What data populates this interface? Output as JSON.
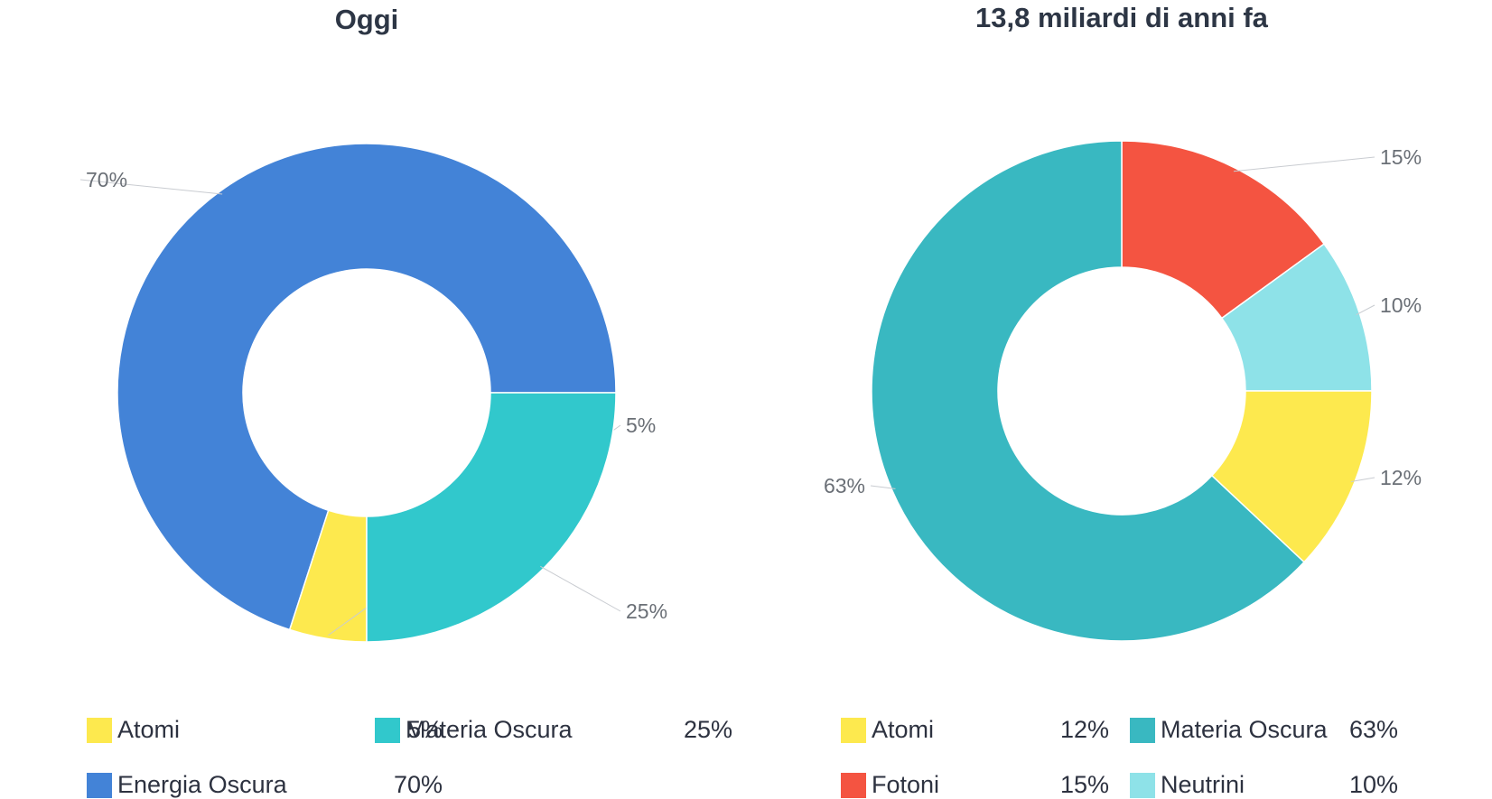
{
  "chart_data": [
    {
      "type": "pie",
      "title": "Oggi",
      "slices": [
        {
          "name": "Energia Oscura",
          "value": 70,
          "label": "70%",
          "color": "#4383d7"
        },
        {
          "name": "Atomi",
          "value": 5,
          "label": "5%",
          "color": "#fde94e"
        },
        {
          "name": "Materia Oscura",
          "value": 25,
          "label": "25%",
          "color": "#31c8cc"
        }
      ],
      "legend": [
        {
          "name": "Atomi",
          "value": "5%",
          "color": "#fde94e"
        },
        {
          "name": "Materia Oscura",
          "value": "25%",
          "color": "#31c8cc"
        },
        {
          "name": "Energia Oscura",
          "value": "70%",
          "color": "#4383d7"
        }
      ]
    },
    {
      "type": "pie",
      "title": "13,8 miliardi di anni fa",
      "slices": [
        {
          "name": "Fotoni",
          "value": 15,
          "label": "15%",
          "color": "#f45441"
        },
        {
          "name": "Neutrini",
          "value": 10,
          "label": "10%",
          "color": "#8ee2e8"
        },
        {
          "name": "Atomi",
          "value": 12,
          "label": "12%",
          "color": "#fde94e"
        },
        {
          "name": "Materia Oscura",
          "value": 63,
          "label": "63%",
          "color": "#39b8c1"
        }
      ],
      "legend": [
        {
          "name": "Atomi",
          "value": "12%",
          "color": "#fde94e"
        },
        {
          "name": "Materia Oscura",
          "value": "63%",
          "color": "#39b8c1"
        },
        {
          "name": "Fotoni",
          "value": "15%",
          "color": "#f45441"
        },
        {
          "name": "Neutrini",
          "value": "10%",
          "color": "#8ee2e8"
        }
      ]
    }
  ]
}
